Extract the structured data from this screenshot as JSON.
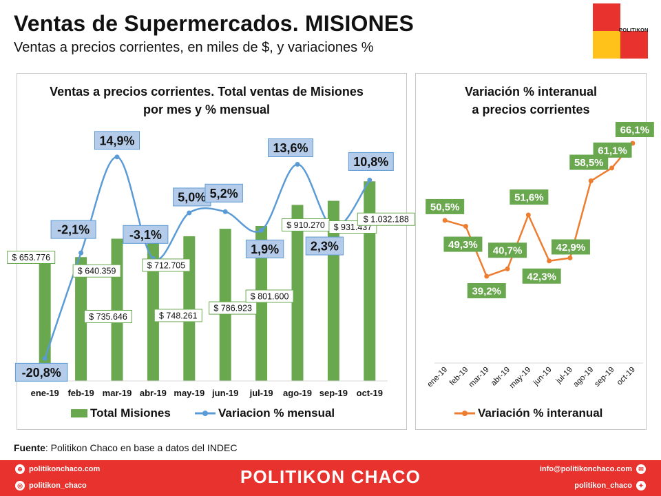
{
  "header": {
    "title": "Ventas de Supermercados. MISIONES",
    "subtitle": "Ventas a precios corrientes, en miles de $, y variaciones %",
    "logo_text": "POLITIKON"
  },
  "source": {
    "label": "Fuente",
    "text": ": Politikon Chaco en base a datos del INDEC"
  },
  "footer": {
    "brand": "POLITIKON CHACO",
    "web": "politikonchaco.com",
    "instagram": "politikon_chaco",
    "email": "info@politikonchaco.com",
    "twitter": "politikon_chaco"
  },
  "colors": {
    "bar": "#6aa84f",
    "line_blue": "#5b9bd5",
    "line_orange": "#ed7d31",
    "brand_red": "#e8322d",
    "brand_yellow": "#ffc21a"
  },
  "chart_data": [
    {
      "type": "bar",
      "title": "Ventas a precios corrientes. Total ventas de Misiones por mes y % mensual",
      "categories": [
        "ene-19",
        "feb-19",
        "mar-19",
        "abr-19",
        "may-19",
        "jun-19",
        "jul-19",
        "ago-19",
        "sep-19",
        "oct-19"
      ],
      "series": [
        {
          "name": "Total Misiones",
          "type": "bar",
          "values": [
            653776,
            640359,
            735646,
            712705,
            748261,
            786923,
            801600,
            910270,
            931437,
            1032188
          ],
          "labels": [
            "$ 653.776",
            "$ 640.359",
            "$ 735.646",
            "$ 712.705",
            "$ 748.261",
            "$ 786.923",
            "$ 801.600",
            "$ 910.270",
            "$ 931.437",
            "$ 1.032.188"
          ]
        },
        {
          "name": "Variacion % mensual",
          "type": "line",
          "values": [
            -20.8,
            -2.1,
            14.9,
            -3.1,
            5.0,
            5.2,
            1.9,
            13.6,
            2.3,
            10.8
          ],
          "labels": [
            "-20,8%",
            "-2,1%",
            "14,9%",
            "-3,1%",
            "5,0%",
            "5,2%",
            "1,9%",
            "13,6%",
            "2,3%",
            "10,8%"
          ]
        }
      ],
      "legend": "bottom"
    },
    {
      "type": "line",
      "title": "Variación % interanual a precios corrientes",
      "categories": [
        "ene-19",
        "feb-19",
        "mar-19",
        "abr-19",
        "may-19",
        "jun-19",
        "jul-19",
        "ago-19",
        "sep-19",
        "oct-19"
      ],
      "series": [
        {
          "name": "Variación % interanual",
          "values": [
            50.5,
            49.3,
            39.2,
            40.7,
            51.6,
            42.3,
            42.9,
            58.5,
            61.1,
            66.1
          ],
          "labels": [
            "50,5%",
            "49,3%",
            "39,2%",
            "40,7%",
            "51,6%",
            "42,3%",
            "42,9%",
            "58,5%",
            "61,1%",
            "66,1%"
          ]
        }
      ],
      "legend": "bottom"
    }
  ]
}
